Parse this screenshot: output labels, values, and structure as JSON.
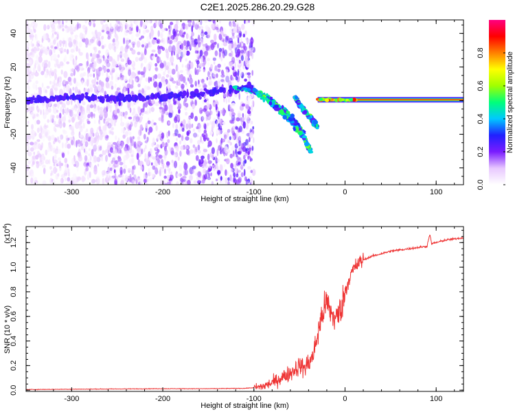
{
  "title": "C2E1.2025.286.20.29.G28",
  "chart_data": [
    {
      "type": "heatmap",
      "title": "C2E1.2025.286.20.29.G28",
      "xlabel": "Height of straight line (km)",
      "ylabel": "Frequency (Hz)",
      "xlim": [
        -350,
        130
      ],
      "ylim": [
        -50,
        48
      ],
      "x_ticks": [
        -300,
        -200,
        -100,
        0,
        100
      ],
      "x_tick_labels": [
        "-300",
        "-200",
        "-100",
        "0",
        "100"
      ],
      "y_ticks": [
        -40,
        -20,
        0,
        20,
        40
      ],
      "y_tick_labels": [
        "-40",
        "-20",
        "0",
        "20",
        "40"
      ],
      "colorbar": {
        "label": "Normalized spectral amplitude",
        "range": [
          0,
          1
        ],
        "ticks": [
          0.0,
          0.2,
          0.4,
          0.6,
          0.8
        ],
        "tick_labels": [
          "0.0",
          "0.2",
          "0.4",
          "0.6",
          "0.8"
        ],
        "colors": [
          "#ffffff",
          "#e8c8ff",
          "#7a1cff",
          "#2020ff",
          "#00c8ff",
          "#00ff7a",
          "#a0ff00",
          "#ffff00",
          "#ff8000",
          "#ff0000",
          "#ff0080"
        ]
      },
      "features": {
        "noise_region_x": [
          -350,
          -100
        ],
        "noise_region_y": [
          -50,
          48
        ],
        "main_signal_x": [
          -30,
          130
        ],
        "main_signal_freq": 0.5,
        "descending_branches": [
          {
            "x": [
              -120,
              -90,
              -70,
              -55,
              -45
            ],
            "y": [
              8,
              4,
              -4,
              -12,
              -20
            ]
          },
          {
            "x": [
              -100,
              -80,
              -60,
              -45,
              -38
            ],
            "y": [
              6,
              -2,
              -12,
              -22,
              -30
            ]
          },
          {
            "x": [
              -55,
              -45,
              -35,
              -30
            ],
            "y": [
              2,
              -6,
              -12,
              -16
            ]
          }
        ],
        "ridge": {
          "x": [
            -350,
            -300,
            -250,
            -200,
            -150,
            -100
          ],
          "y": [
            0,
            2,
            1,
            2,
            5,
            8
          ]
        }
      },
      "grid": false,
      "legend": "colorbar-right"
    },
    {
      "type": "line",
      "title": "",
      "xlabel": "Height of straight line (km)",
      "ylabel": "SNR (10 * v/v)",
      "scale_note": "(x10",
      "scale_exp": "4",
      "xlim": [
        -350,
        130
      ],
      "ylim": [
        -0.01,
        1.33
      ],
      "x_ticks": [
        -300,
        -200,
        -100,
        0,
        100
      ],
      "x_tick_labels": [
        "-300",
        "-200",
        "-100",
        "0",
        "100"
      ],
      "y_ticks": [
        0.0,
        0.2,
        0.4,
        0.6,
        0.8,
        1.0,
        1.2
      ],
      "y_tick_labels": [
        "0.0",
        "0.2",
        "0.4",
        "0.6",
        "0.8",
        "1.0",
        "1.2"
      ],
      "color": "#ee3333",
      "series": [
        {
          "x": [
            -350,
            -300,
            -250,
            -200,
            -150,
            -110,
            -100,
            -90,
            -80,
            -70,
            -60,
            -50,
            -45,
            -40,
            -35,
            -30,
            -25,
            -20,
            -15,
            -10,
            -5,
            0,
            5,
            10,
            15,
            20,
            30,
            40,
            50,
            60,
            70,
            80,
            90,
            93,
            95,
            100,
            110,
            120,
            130
          ],
          "y": [
            0.005,
            0.008,
            0.01,
            0.012,
            0.012,
            0.015,
            0.02,
            0.03,
            0.06,
            0.1,
            0.14,
            0.2,
            0.18,
            0.22,
            0.28,
            0.45,
            0.62,
            0.72,
            0.62,
            0.58,
            0.65,
            0.8,
            0.92,
            0.99,
            1.03,
            1.06,
            1.09,
            1.11,
            1.13,
            1.14,
            1.15,
            1.16,
            1.17,
            1.27,
            1.19,
            1.2,
            1.22,
            1.23,
            1.24
          ]
        }
      ],
      "grid": false
    }
  ]
}
